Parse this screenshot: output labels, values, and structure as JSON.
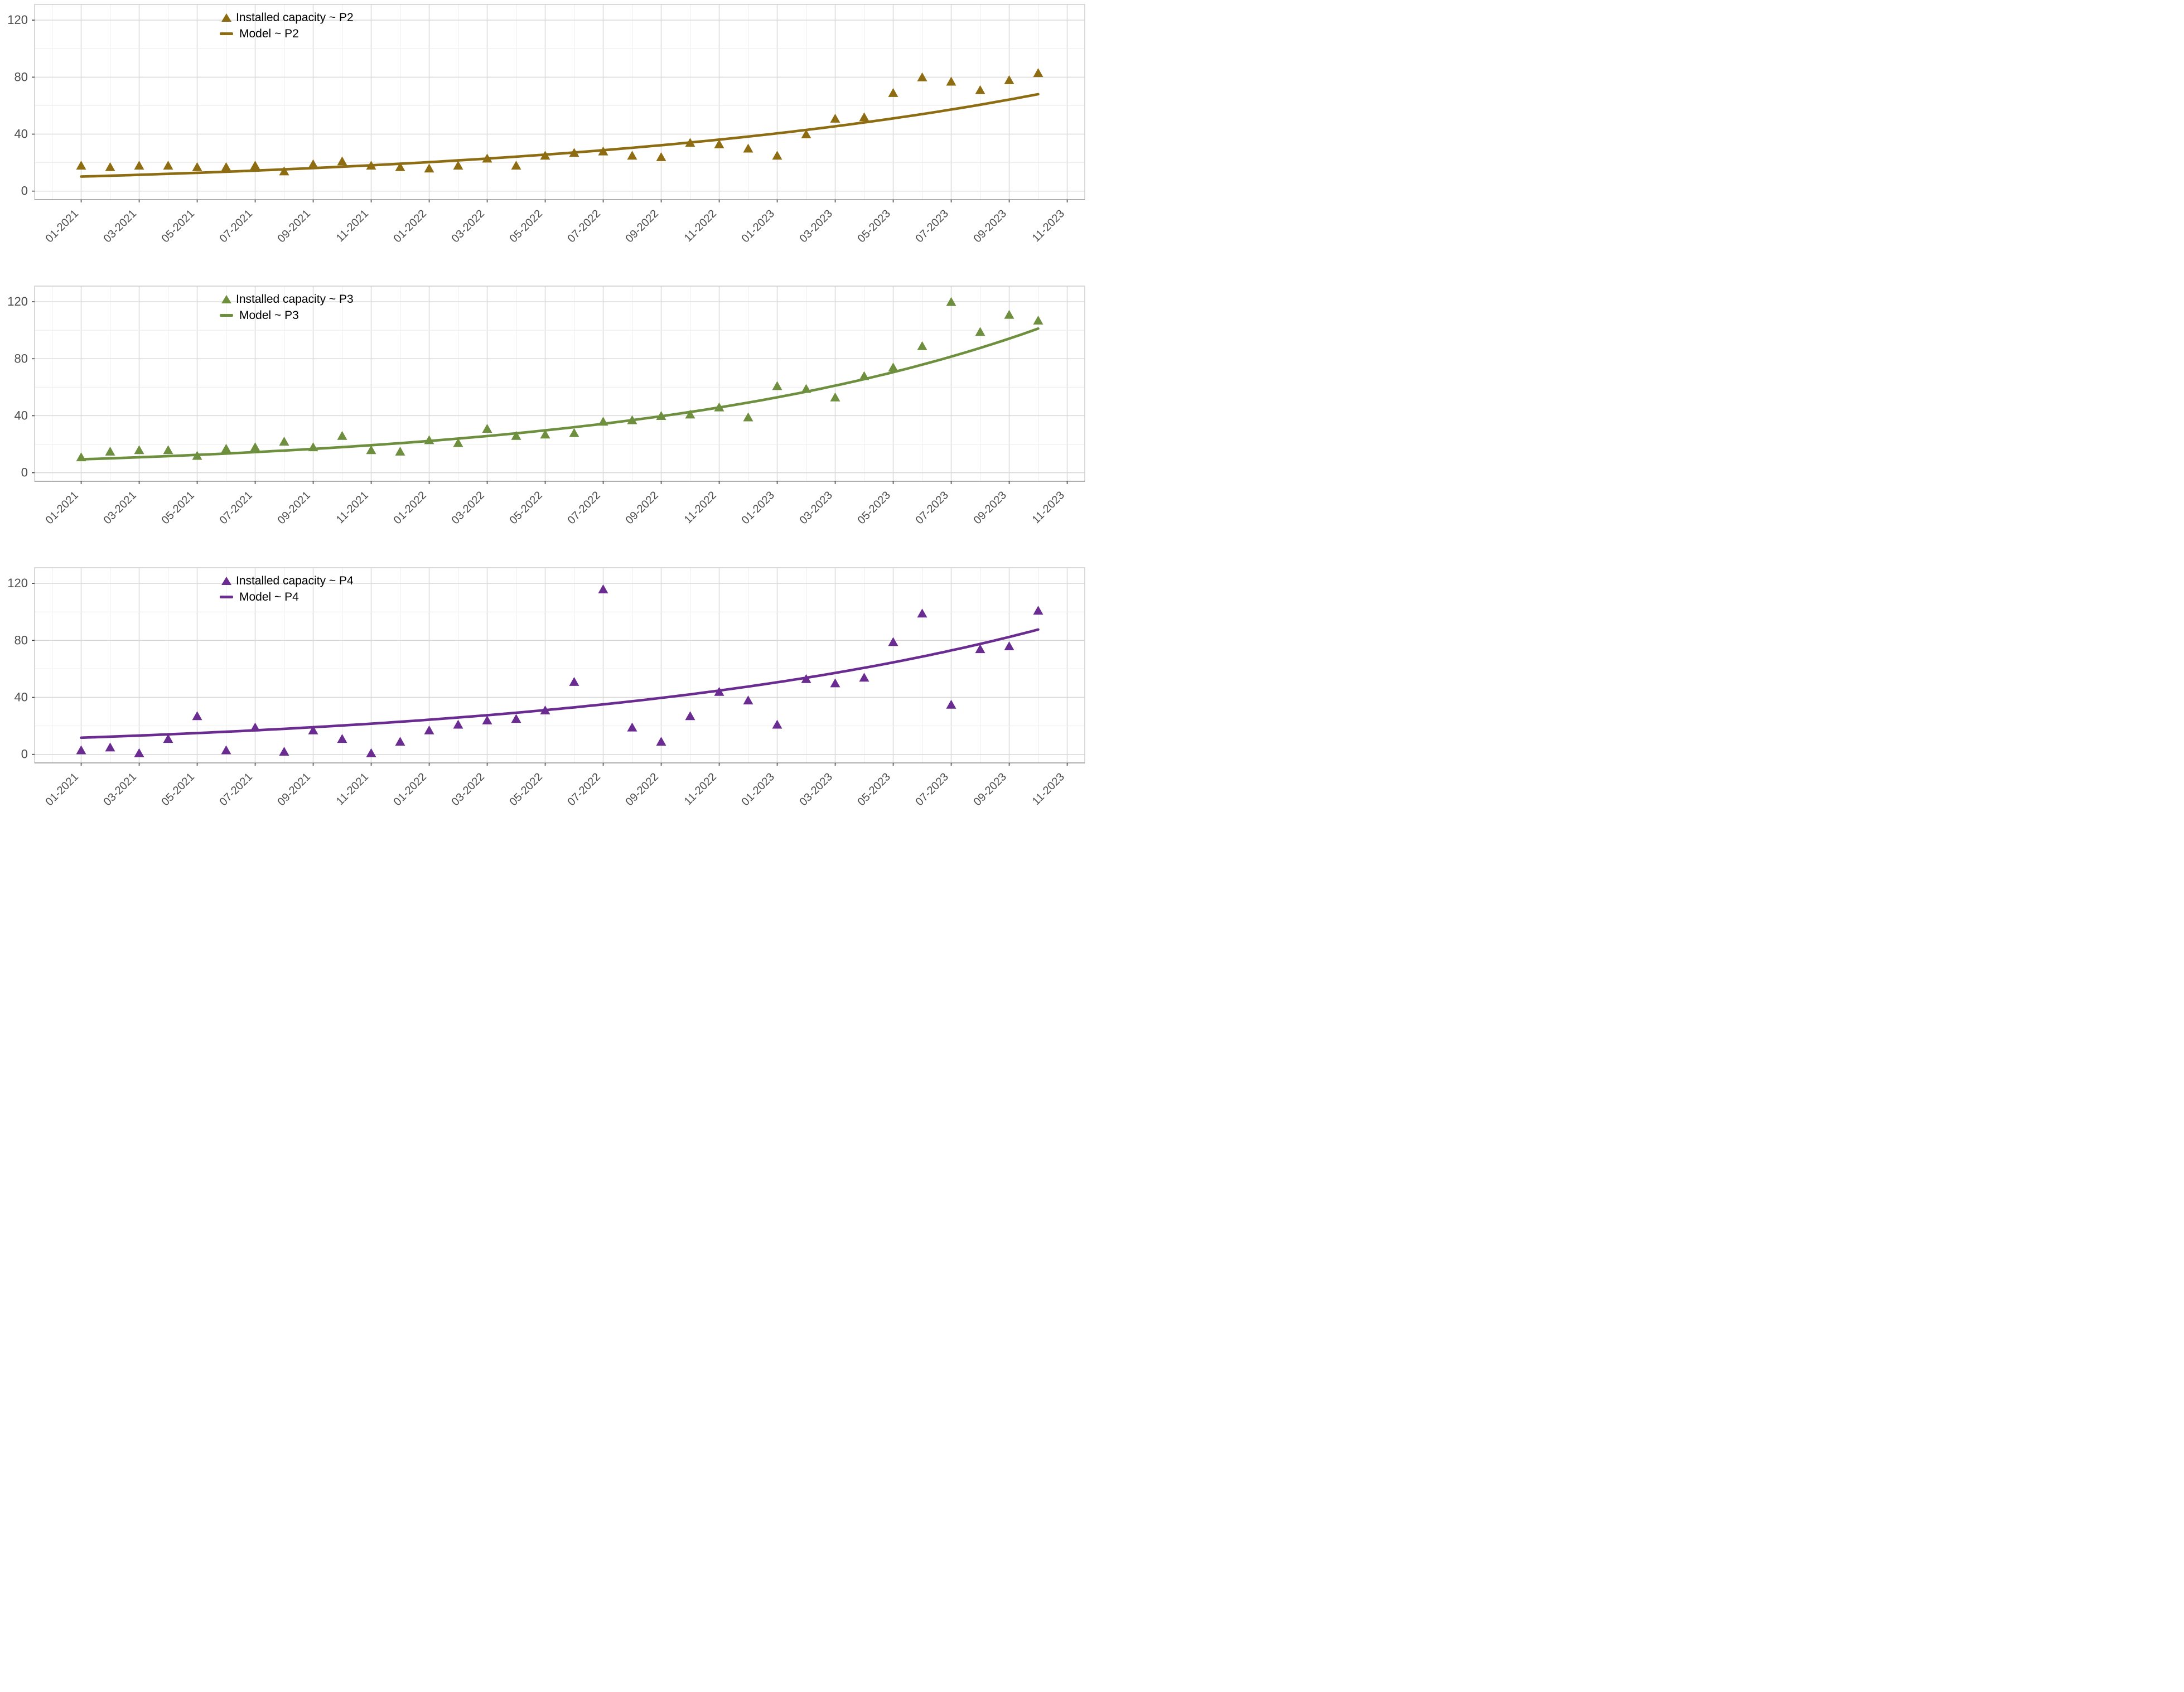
{
  "figure": {
    "background": "#ffffff"
  },
  "axis": {
    "text_color": "#4d4d4d",
    "major_grid_color": "#d6d6d6",
    "minor_grid_color": "#ebebeb",
    "panel_border_color": "#c9c9c9",
    "tick_mark_color": "#404040",
    "y_tick_labels": [
      "0",
      "40",
      "80",
      "120"
    ],
    "y_tick_values": [
      0,
      40,
      80,
      120
    ],
    "y_minor_values": [
      20,
      60,
      100
    ],
    "x_tick_labels": [
      "01-2021",
      "03-2021",
      "05-2021",
      "07-2021",
      "09-2021",
      "11-2021",
      "01-2022",
      "03-2022",
      "05-2022",
      "07-2022",
      "09-2022",
      "11-2022",
      "01-2023",
      "03-2023",
      "05-2023",
      "07-2023",
      "09-2023",
      "11-2023"
    ]
  },
  "chart_data": [
    {
      "type": "scatter",
      "series_label": "Installed capacity ~ P2",
      "model_label": "Model ~ P2",
      "color": "#8d6c12",
      "x_start": "01-2021",
      "x_step_months": 1,
      "values": [
        18,
        17,
        18,
        18,
        17,
        17,
        18,
        14,
        19,
        21,
        18,
        17,
        16,
        18,
        23,
        18,
        25,
        27,
        28,
        25,
        24,
        34,
        33,
        30,
        25,
        40,
        51,
        52,
        69,
        80,
        77,
        71,
        78,
        83
      ],
      "model": {
        "start": 10.2,
        "monthly_growth_rate": 0.0575
      },
      "ylim": [
        -6,
        131
      ],
      "grid": true,
      "legend_position": "top-inside"
    },
    {
      "type": "scatter",
      "series_label": "Installed capacity ~ P3",
      "model_label": "Model ~ P3",
      "color": "#6d8f3e",
      "x_start": "01-2021",
      "x_step_months": 1,
      "values": [
        11,
        15,
        16,
        16,
        12,
        17,
        18,
        22,
        18,
        26,
        16,
        15,
        23,
        21,
        31,
        26,
        27,
        28,
        36,
        37,
        40,
        41,
        46,
        39,
        61,
        59,
        53,
        68,
        74,
        89,
        120,
        99,
        111,
        107
      ],
      "model": {
        "start": 9.4,
        "monthly_growth_rate": 0.072
      },
      "ylim": [
        -6,
        131
      ],
      "grid": true,
      "legend_position": "top-inside"
    },
    {
      "type": "scatter",
      "series_label": "Installed capacity ~ P4",
      "model_label": "Model ~ P4",
      "color": "#6b2c91",
      "x_start": "01-2021",
      "x_step_months": 1,
      "values": [
        3,
        5,
        1,
        11,
        27,
        3,
        19,
        2,
        17,
        11,
        1,
        9,
        17,
        21,
        24,
        25,
        31,
        51,
        116,
        19,
        9,
        27,
        44,
        38,
        21,
        53,
        50,
        54,
        79,
        99,
        35,
        74,
        76,
        101
      ],
      "model": {
        "start": 11.7,
        "monthly_growth_rate": 0.061
      },
      "ylim": [
        -6,
        131
      ],
      "grid": true,
      "legend_position": "top-inside"
    }
  ]
}
